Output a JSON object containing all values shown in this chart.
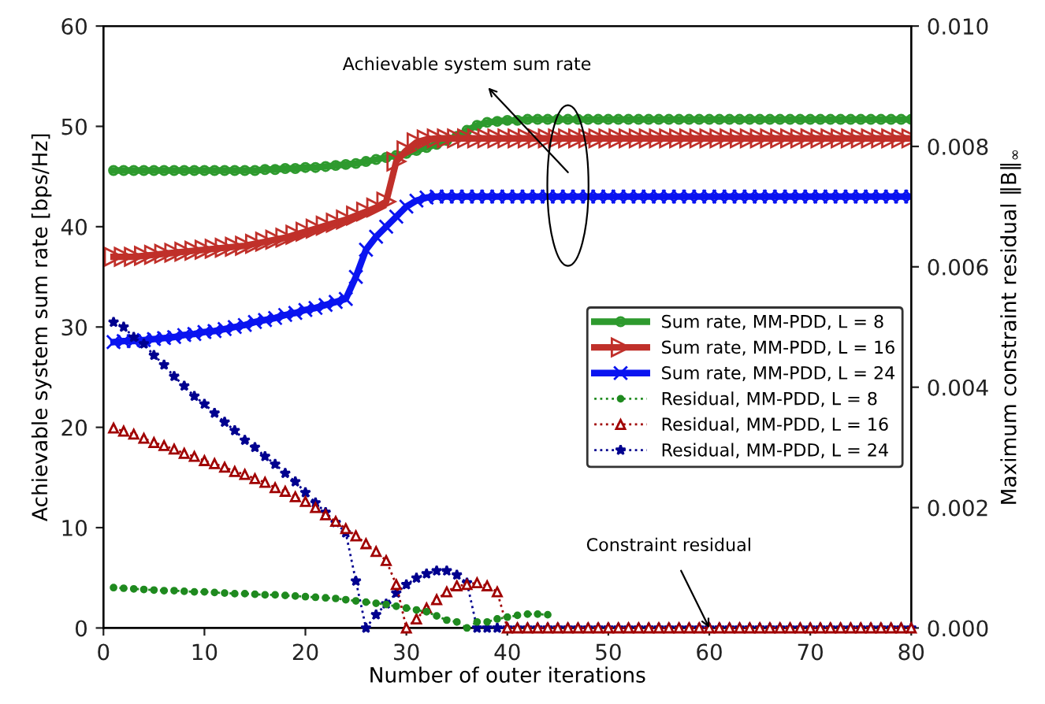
{
  "chart_data": {
    "type": "line",
    "xlabel": "Number of outer iterations",
    "ylabel": "Achievable system sum rate [bps/Hz]",
    "y2label": "Maximum constraint residual ‖B‖$_{∞}$",
    "x": [
      1,
      2,
      3,
      4,
      5,
      6,
      7,
      8,
      9,
      10,
      11,
      12,
      13,
      14,
      15,
      16,
      17,
      18,
      19,
      20,
      21,
      22,
      23,
      24,
      25,
      26,
      27,
      28,
      29,
      30,
      31,
      32,
      33,
      34,
      35,
      36,
      37,
      38,
      39,
      40,
      41,
      42,
      43,
      44,
      45,
      46,
      47,
      48,
      49,
      50,
      51,
      52,
      53,
      54,
      55,
      56,
      57,
      58,
      59,
      60,
      61,
      62,
      63,
      64,
      65,
      66,
      67,
      68,
      69,
      70,
      71,
      72,
      73,
      74,
      75,
      76,
      77,
      78,
      79,
      80
    ],
    "xlim": [
      0,
      80
    ],
    "xticks": [
      0,
      10,
      20,
      30,
      40,
      50,
      60,
      70,
      80
    ],
    "ylim": [
      0,
      60
    ],
    "yticks": [
      0,
      10,
      20,
      30,
      40,
      50,
      60
    ],
    "y2lim": [
      0,
      0.01
    ],
    "y2ticks": [
      {
        "value": 0,
        "label": "0.000"
      },
      {
        "value": 0.002,
        "label": "0.002"
      },
      {
        "value": 0.004,
        "label": "0.004"
      },
      {
        "value": 0.006,
        "label": "0.006"
      },
      {
        "value": 0.008,
        "label": "0.008"
      },
      {
        "value": 0.01,
        "label": "0.010"
      }
    ],
    "grid": false,
    "legend": "right",
    "series": [
      {
        "name": "Sum rate, MM-PDD, L = 8",
        "color": "#2e9a2e",
        "marker": "circle",
        "line_style": "solid",
        "values": [
          45.6,
          45.6,
          45.6,
          45.6,
          45.6,
          45.6,
          45.6,
          45.6,
          45.6,
          45.6,
          45.6,
          45.6,
          45.6,
          45.6,
          45.6,
          45.7,
          45.7,
          45.8,
          45.8,
          45.9,
          45.9,
          46.0,
          46.1,
          46.2,
          46.3,
          46.5,
          46.7,
          46.9,
          47.1,
          47.3,
          47.6,
          47.9,
          48.2,
          48.6,
          49.0,
          49.6,
          50.1,
          50.4,
          50.5,
          50.6,
          50.6,
          50.7,
          50.7,
          50.7,
          50.7,
          50.7,
          50.7,
          50.7,
          50.7,
          50.7,
          50.7,
          50.7,
          50.7,
          50.7,
          50.7,
          50.7,
          50.7,
          50.7,
          50.7,
          50.7,
          50.7,
          50.7,
          50.7,
          50.7,
          50.7,
          50.7,
          50.7,
          50.7,
          50.7,
          50.7,
          50.7,
          50.7,
          50.7,
          50.7,
          50.7,
          50.7,
          50.7,
          50.7,
          50.7,
          50.7
        ]
      },
      {
        "name": "Sum rate, MM-PDD, L = 16",
        "color": "#c0302a",
        "marker": "triangle",
        "line_style": "solid",
        "values": [
          37.0,
          37.0,
          37.0,
          37.1,
          37.2,
          37.3,
          37.4,
          37.5,
          37.6,
          37.7,
          37.8,
          37.9,
          38.0,
          38.1,
          38.3,
          38.5,
          38.7,
          38.9,
          39.2,
          39.5,
          39.8,
          40.1,
          40.4,
          40.7,
          41.1,
          41.5,
          41.9,
          42.5,
          46.5,
          47.6,
          48.4,
          48.7,
          48.8,
          48.8,
          48.8,
          48.8,
          48.8,
          48.8,
          48.8,
          48.8,
          48.8,
          48.8,
          48.8,
          48.8,
          48.8,
          48.8,
          48.8,
          48.8,
          48.8,
          48.8,
          48.8,
          48.8,
          48.8,
          48.8,
          48.8,
          48.8,
          48.8,
          48.8,
          48.8,
          48.8,
          48.8,
          48.8,
          48.8,
          48.8,
          48.8,
          48.8,
          48.8,
          48.8,
          48.8,
          48.8,
          48.8,
          48.8,
          48.8,
          48.8,
          48.8,
          48.8,
          48.8,
          48.8,
          48.8,
          48.8
        ]
      },
      {
        "name": "Sum rate, MM-PDD, L = 24",
        "color": "#0a14f0",
        "marker": "cross",
        "line_style": "solid",
        "values": [
          28.5,
          28.6,
          28.6,
          28.7,
          28.8,
          28.9,
          29.0,
          29.2,
          29.3,
          29.5,
          29.6,
          29.8,
          30.0,
          30.2,
          30.5,
          30.7,
          30.9,
          31.2,
          31.4,
          31.7,
          31.9,
          32.2,
          32.5,
          32.8,
          35.0,
          37.7,
          39.0,
          40.0,
          41.0,
          42.0,
          42.6,
          42.9,
          43.0,
          43.0,
          43.0,
          43.0,
          43.0,
          43.0,
          43.0,
          43.0,
          43.0,
          43.0,
          43.0,
          43.0,
          43.0,
          43.0,
          43.0,
          43.0,
          43.0,
          43.0,
          43.0,
          43.0,
          43.0,
          43.0,
          43.0,
          43.0,
          43.0,
          43.0,
          43.0,
          43.0,
          43.0,
          43.0,
          43.0,
          43.0,
          43.0,
          43.0,
          43.0,
          43.0,
          43.0,
          43.0,
          43.0,
          43.0,
          43.0,
          43.0,
          43.0,
          43.0,
          43.0,
          43.0,
          43.0,
          43.0
        ]
      },
      {
        "name": "Residual, MM-PDD, L = 8",
        "color": "#1f8a1f",
        "marker": "circle",
        "line_style": "dotted",
        "axis": "y2",
        "values": [
          0.00067,
          0.00066,
          0.00065,
          0.00064,
          0.00063,
          0.00062,
          0.00062,
          0.00061,
          0.0006,
          0.0006,
          0.00059,
          0.00058,
          0.00057,
          0.00057,
          0.00056,
          0.00055,
          0.00055,
          0.00054,
          0.00053,
          0.00052,
          0.00051,
          0.0005,
          0.00049,
          0.00047,
          0.00045,
          0.00043,
          0.00041,
          0.00039,
          0.00036,
          0.00033,
          0.0003,
          0.00027,
          0.0002,
          0.00013,
          0.0001,
          0,
          0.0001,
          0.0001,
          0.00015,
          0.00018,
          0.00021,
          0.00023,
          0.00023,
          0.00022,
          null,
          null,
          null,
          null,
          null,
          null,
          null,
          null,
          null,
          null,
          null,
          null,
          null,
          null,
          null,
          null,
          null,
          null,
          null,
          null,
          null,
          null,
          null,
          null,
          null,
          null,
          null,
          null,
          null,
          null,
          null,
          null,
          null,
          null,
          null,
          null
        ]
      },
      {
        "name": "Residual, MM-PDD, L = 16",
        "color": "#a00000",
        "marker": "triangle",
        "line_style": "dotted",
        "axis": "y2",
        "values": [
          0.00332,
          0.00327,
          0.00322,
          0.00315,
          0.00308,
          0.00303,
          0.00297,
          0.0029,
          0.00285,
          0.00278,
          0.00273,
          0.00267,
          0.0026,
          0.00255,
          0.00248,
          0.00242,
          0.00233,
          0.00227,
          0.00218,
          0.0021,
          0.002,
          0.00188,
          0.00177,
          0.00165,
          0.00153,
          0.0014,
          0.00127,
          0.00112,
          0.00072,
          0,
          0.00015,
          0.00033,
          0.00047,
          0.0006,
          0.0007,
          0.00072,
          0.00075,
          0.0007,
          0.0006,
          0,
          0,
          0,
          0,
          0,
          0,
          0,
          0,
          0,
          0,
          0,
          0,
          0,
          0,
          0,
          0,
          0,
          0,
          0,
          0,
          0,
          0,
          0,
          0,
          0,
          0,
          0,
          0,
          0,
          0,
          0,
          0,
          0,
          0,
          0,
          0,
          0,
          0,
          0,
          0,
          0
        ]
      },
      {
        "name": "Residual, MM-PDD, L = 24",
        "color": "#00008f",
        "marker": "star",
        "line_style": "dotted",
        "axis": "y2",
        "values": [
          0.00508,
          0.005,
          0.00483,
          0.00472,
          0.00453,
          0.00437,
          0.00418,
          0.00402,
          0.00385,
          0.00372,
          0.00357,
          0.00342,
          0.00328,
          0.00312,
          0.003,
          0.00285,
          0.00272,
          0.00257,
          0.00243,
          0.00225,
          0.00208,
          0.00192,
          0.00175,
          0.00158,
          0.00078,
          0,
          0.00022,
          0.0004,
          0.00058,
          0.00072,
          0.00083,
          0.0009,
          0.00095,
          0.00095,
          0.00088,
          0.00075,
          0,
          0,
          0,
          0,
          0,
          0,
          0,
          0,
          0,
          0,
          0,
          0,
          0,
          0,
          0,
          0,
          0,
          0,
          0,
          0,
          0,
          0,
          0,
          0,
          0,
          0,
          0,
          0,
          0,
          0,
          0,
          0,
          0,
          0,
          0,
          0,
          0,
          0,
          0,
          0,
          0,
          0,
          0,
          0
        ]
      }
    ],
    "annotations": [
      "Achievable system sum rate",
      {
        "text": "Constraint residual",
        "x": 60,
        "y": 0
      }
    ]
  }
}
